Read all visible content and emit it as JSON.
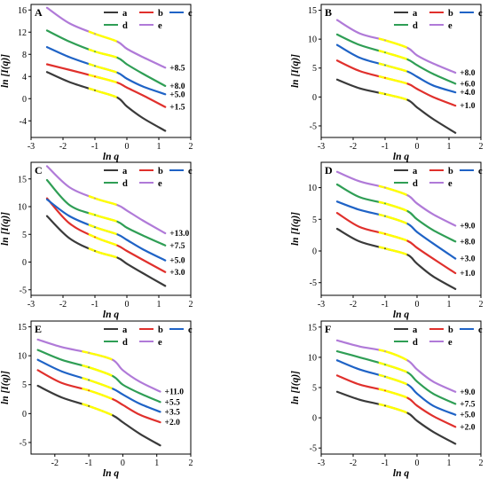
{
  "colors": {
    "a": "#3a3a3a",
    "b": "#e0302c",
    "c": "#1f63c6",
    "d": "#2f9e55",
    "e": "#b07ad8",
    "highlight": "#ffff00"
  },
  "chart_data": [
    {
      "type": "line",
      "panel": "A",
      "xlabel": "ln q",
      "ylabel": "ln [I(q)]",
      "xlim": [
        -3,
        2
      ],
      "ylim": [
        -7,
        17
      ],
      "xticks": [
        -3,
        -2,
        -1,
        0,
        1,
        2
      ],
      "yticks": [
        -4,
        0,
        4,
        8,
        12,
        16
      ],
      "legend": [
        "a",
        "b",
        "c",
        "d",
        "e"
      ],
      "offset_labels": [
        "+8.5",
        "+8.0",
        "+5.0",
        "+1.5"
      ],
      "series": [
        {
          "name": "a",
          "x": [
            -2.5,
            -1.8,
            -1.0,
            -0.3,
            0.0,
            0.5,
            1.2
          ],
          "y": [
            4.8,
            3.0,
            1.5,
            0.2,
            -1.4,
            -3.5,
            -5.8
          ]
        },
        {
          "name": "b",
          "x": [
            -2.5,
            -1.8,
            -1.0,
            -0.3,
            0.0,
            0.5,
            1.2
          ],
          "y": [
            6.2,
            5.2,
            4.0,
            2.9,
            2.0,
            0.6,
            -1.5
          ]
        },
        {
          "name": "c",
          "x": [
            -2.5,
            -1.8,
            -1.0,
            -0.3,
            0.0,
            0.5,
            1.2
          ],
          "y": [
            9.3,
            7.5,
            5.9,
            4.7,
            3.6,
            2.2,
            0.8
          ]
        },
        {
          "name": "d",
          "x": [
            -2.5,
            -1.8,
            -1.0,
            -0.3,
            0.0,
            0.5,
            1.2
          ],
          "y": [
            12.3,
            10.3,
            8.5,
            7.4,
            6.2,
            4.5,
            2.3
          ]
        },
        {
          "name": "e",
          "x": [
            -2.5,
            -1.8,
            -1.0,
            -0.3,
            0.0,
            0.5,
            1.2
          ],
          "y": [
            16.4,
            13.6,
            11.7,
            10.3,
            9.0,
            7.5,
            5.6
          ]
        }
      ]
    },
    {
      "type": "line",
      "panel": "B",
      "xlabel": "ln q",
      "ylabel": "ln [I(q)]",
      "xlim": [
        -3,
        2
      ],
      "ylim": [
        -7,
        16
      ],
      "xticks": [
        -3,
        -2,
        -1,
        0,
        1,
        2
      ],
      "yticks": [
        -5,
        0,
        5,
        10,
        15
      ],
      "legend": [
        "a",
        "b",
        "c",
        "d",
        "e"
      ],
      "offset_labels": [
        "+8.0",
        "+6.0",
        "+4.0",
        "+1.0"
      ],
      "series": [
        {
          "name": "a",
          "x": [
            -2.5,
            -1.8,
            -1.0,
            -0.3,
            0.0,
            0.5,
            1.2
          ],
          "y": [
            3.0,
            1.5,
            0.5,
            -0.5,
            -1.8,
            -3.8,
            -6.2
          ]
        },
        {
          "name": "b",
          "x": [
            -2.5,
            -1.8,
            -1.0,
            -0.3,
            0.0,
            0.5,
            1.2
          ],
          "y": [
            6.3,
            4.5,
            3.3,
            2.3,
            1.4,
            0.0,
            -1.5
          ]
        },
        {
          "name": "c",
          "x": [
            -2.5,
            -1.8,
            -1.0,
            -0.3,
            0.0,
            0.5,
            1.2
          ],
          "y": [
            9.0,
            6.8,
            5.5,
            4.4,
            3.5,
            2.0,
            0.8
          ]
        },
        {
          "name": "d",
          "x": [
            -2.5,
            -1.8,
            -1.0,
            -0.3,
            0.0,
            0.5,
            1.2
          ],
          "y": [
            10.8,
            9.0,
            7.7,
            6.5,
            5.5,
            4.0,
            2.3
          ]
        },
        {
          "name": "e",
          "x": [
            -2.5,
            -1.8,
            -1.0,
            -0.3,
            0.0,
            0.5,
            1.2
          ],
          "y": [
            13.3,
            11.0,
            9.8,
            8.5,
            7.2,
            5.8,
            4.2
          ]
        }
      ]
    },
    {
      "type": "line",
      "panel": "C",
      "xlabel": "ln q",
      "ylabel": "ln [I(q)]",
      "xlim": [
        -3,
        2
      ],
      "ylim": [
        -6,
        18
      ],
      "xticks": [
        -3,
        -2,
        -1,
        0,
        1,
        2
      ],
      "yticks": [
        -5,
        0,
        5,
        10,
        15
      ],
      "legend": [
        "a",
        "b",
        "c",
        "d",
        "e"
      ],
      "offset_labels": [
        "+13.0",
        "+7.5",
        "+5.0",
        "+3.0"
      ],
      "series": [
        {
          "name": "a",
          "x": [
            -2.5,
            -1.8,
            -1.0,
            -0.3,
            0.0,
            0.5,
            1.2
          ],
          "y": [
            8.3,
            4.3,
            2.0,
            0.8,
            -0.3,
            -2.0,
            -4.3
          ]
        },
        {
          "name": "b",
          "x": [
            -2.5,
            -1.8,
            -1.0,
            -0.3,
            0.0,
            0.5,
            1.2
          ],
          "y": [
            11.5,
            7.0,
            4.5,
            3.0,
            2.0,
            0.4,
            -1.8
          ]
        },
        {
          "name": "c",
          "x": [
            -2.5,
            -1.8,
            -1.0,
            -0.3,
            0.0,
            0.5,
            1.2
          ],
          "y": [
            11.3,
            8.3,
            6.3,
            5.0,
            4.0,
            2.3,
            0.3
          ]
        },
        {
          "name": "d",
          "x": [
            -2.5,
            -1.8,
            -1.0,
            -0.3,
            0.0,
            0.5,
            1.2
          ],
          "y": [
            14.8,
            10.3,
            8.5,
            7.3,
            6.2,
            4.8,
            3.0
          ]
        },
        {
          "name": "e",
          "x": [
            -2.5,
            -1.8,
            -1.0,
            -0.3,
            0.0,
            0.5,
            1.2
          ],
          "y": [
            17.3,
            13.5,
            11.5,
            10.3,
            9.3,
            7.5,
            5.2
          ]
        }
      ]
    },
    {
      "type": "line",
      "panel": "D",
      "xlabel": "ln q",
      "ylabel": "ln [I(q)]",
      "xlim": [
        -3,
        2
      ],
      "ylim": [
        -7,
        14
      ],
      "xticks": [
        -3,
        -2,
        -1,
        0,
        1,
        2
      ],
      "yticks": [
        -5,
        0,
        5,
        10
      ],
      "legend": [
        "a",
        "b",
        "c",
        "d",
        "e"
      ],
      "offset_labels": [
        "+9.0",
        "+8.0",
        "+3.0",
        "+1.0"
      ],
      "series": [
        {
          "name": "a",
          "x": [
            -2.5,
            -1.8,
            -1.0,
            -0.3,
            0.0,
            0.5,
            1.2
          ],
          "y": [
            3.5,
            1.5,
            0.4,
            -0.6,
            -2.0,
            -4.0,
            -6.0
          ]
        },
        {
          "name": "b",
          "x": [
            -2.5,
            -1.8,
            -1.0,
            -0.3,
            0.0,
            0.5,
            1.2
          ],
          "y": [
            6.0,
            3.8,
            2.7,
            1.6,
            0.5,
            -1.2,
            -3.5
          ]
        },
        {
          "name": "c",
          "x": [
            -2.5,
            -1.8,
            -1.0,
            -0.3,
            0.0,
            0.5,
            1.2
          ],
          "y": [
            7.8,
            6.5,
            5.5,
            4.3,
            3.0,
            1.2,
            -1.2
          ]
        },
        {
          "name": "d",
          "x": [
            -2.5,
            -1.8,
            -1.0,
            -0.3,
            0.0,
            0.5,
            1.2
          ],
          "y": [
            10.5,
            8.5,
            7.5,
            6.3,
            5.0,
            3.3,
            1.5
          ]
        },
        {
          "name": "e",
          "x": [
            -2.5,
            -1.8,
            -1.0,
            -0.3,
            0.0,
            0.5,
            1.2
          ],
          "y": [
            12.5,
            11.0,
            10.0,
            8.8,
            7.5,
            5.8,
            4.0
          ]
        }
      ]
    },
    {
      "type": "line",
      "panel": "E",
      "xlabel": "ln q",
      "ylabel": "ln [I(q)]",
      "xlim": [
        -2.7,
        2
      ],
      "ylim": [
        -7,
        16
      ],
      "xticks": [
        -2,
        -1,
        0,
        1,
        2
      ],
      "yticks": [
        -5,
        0,
        5,
        10,
        15
      ],
      "legend": [
        "a",
        "b",
        "c",
        "d",
        "e"
      ],
      "offset_labels": [
        "+11.0",
        "+5.5",
        "+3.5",
        "+2.0"
      ],
      "series": [
        {
          "name": "a",
          "x": [
            -2.5,
            -1.8,
            -1.0,
            -0.3,
            0.0,
            0.5,
            1.1
          ],
          "y": [
            4.8,
            2.8,
            1.3,
            -0.3,
            -1.5,
            -3.5,
            -5.5
          ]
        },
        {
          "name": "b",
          "x": [
            -2.5,
            -1.8,
            -1.0,
            -0.3,
            0.0,
            0.5,
            1.1
          ],
          "y": [
            7.5,
            5.3,
            4.0,
            2.5,
            1.5,
            -0.2,
            -1.5
          ]
        },
        {
          "name": "c",
          "x": [
            -2.5,
            -1.8,
            -1.0,
            -0.3,
            0.0,
            0.5,
            1.1
          ],
          "y": [
            9.3,
            7.3,
            5.8,
            4.3,
            3.3,
            1.7,
            0.3
          ]
        },
        {
          "name": "d",
          "x": [
            -2.5,
            -1.8,
            -1.0,
            -0.3,
            0.0,
            0.5,
            1.1
          ],
          "y": [
            11.0,
            9.3,
            8.0,
            6.5,
            5.0,
            3.5,
            2.0
          ]
        },
        {
          "name": "e",
          "x": [
            -2.5,
            -1.8,
            -1.0,
            -0.3,
            0.0,
            0.5,
            1.1
          ],
          "y": [
            12.8,
            11.5,
            10.5,
            9.3,
            7.5,
            5.5,
            3.8
          ]
        }
      ]
    },
    {
      "type": "line",
      "panel": "F",
      "xlabel": "ln q",
      "ylabel": "ln [I(q)]",
      "xlim": [
        -3,
        2
      ],
      "ylim": [
        -6,
        16
      ],
      "xticks": [
        -3,
        -2,
        -1,
        0,
        1,
        2
      ],
      "yticks": [
        -5,
        0,
        5,
        10,
        15
      ],
      "legend": [
        "a",
        "b",
        "c",
        "d",
        "e"
      ],
      "offset_labels": [
        "+9.0",
        "+7.5",
        "+5.0",
        "+2.0"
      ],
      "series": [
        {
          "name": "a",
          "x": [
            -2.5,
            -1.8,
            -1.0,
            -0.3,
            0.0,
            0.5,
            1.2
          ],
          "y": [
            4.3,
            3.0,
            2.0,
            0.8,
            -0.5,
            -2.3,
            -4.3
          ]
        },
        {
          "name": "b",
          "x": [
            -2.5,
            -1.8,
            -1.0,
            -0.3,
            0.0,
            0.5,
            1.2
          ],
          "y": [
            7.0,
            5.5,
            4.5,
            3.3,
            2.0,
            0.3,
            -1.5
          ]
        },
        {
          "name": "c",
          "x": [
            -2.5,
            -1.8,
            -1.0,
            -0.3,
            0.0,
            0.5,
            1.2
          ],
          "y": [
            9.5,
            8.0,
            6.8,
            5.5,
            4.0,
            2.0,
            0.5
          ]
        },
        {
          "name": "d",
          "x": [
            -2.5,
            -1.8,
            -1.0,
            -0.3,
            0.0,
            0.5,
            1.2
          ],
          "y": [
            11.0,
            10.0,
            8.8,
            7.5,
            6.0,
            4.0,
            2.3
          ]
        },
        {
          "name": "e",
          "x": [
            -2.5,
            -1.8,
            -1.0,
            -0.3,
            0.0,
            0.5,
            1.2
          ],
          "y": [
            12.8,
            11.8,
            11.0,
            9.5,
            8.0,
            6.0,
            4.3
          ]
        }
      ]
    }
  ]
}
